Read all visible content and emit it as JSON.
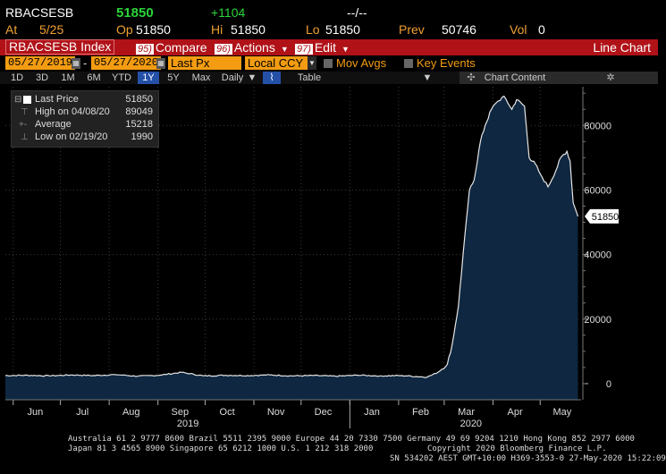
{
  "quote": {
    "ticker": "RBACSESB",
    "last": "51850",
    "change": "+1104",
    "dashes": "--/--",
    "at_label": "At",
    "at_value": "5/25",
    "op_label": "Op",
    "op_value": "51850",
    "hi_label": "Hi",
    "hi_value": "51850",
    "lo_label": "Lo",
    "lo_value": "51850",
    "prev_label": "Prev",
    "prev_value": "50746",
    "vol_label": "Vol",
    "vol_value": "0"
  },
  "toolbar": {
    "security": "RBACSESB Index",
    "compare_num": "95)",
    "compare_label": "Compare",
    "actions_num": "96)",
    "actions_label": "Actions",
    "edit_num": "97)",
    "edit_label": "Edit",
    "chart_type": "Line Chart"
  },
  "controls": {
    "start_date": "05/27/2019",
    "date_sep": "-",
    "end_date": "05/27/2020",
    "field": "Last Px",
    "currency": "Local CCY",
    "mov_avgs": "Mov Avgs",
    "key_events": "Key Events"
  },
  "periods": {
    "items": [
      "1D",
      "3D",
      "1M",
      "6M",
      "YTD",
      "1Y",
      "5Y",
      "Max"
    ],
    "selected": "1Y",
    "frequency": "Daily",
    "table_label": "Table",
    "chart_content_label": "Chart Content"
  },
  "legend": {
    "last_price_label": "Last Price",
    "last_price_value": "51850",
    "high_label": "High on 04/08/20",
    "high_value": "89049",
    "average_label": "Average",
    "average_value": "15218",
    "low_label": "Low on 02/19/20",
    "low_value": "1990"
  },
  "chart_data": {
    "type": "area",
    "x_tick_labels": [
      "Jun",
      "Jul",
      "Aug",
      "Sep",
      "Oct",
      "Nov",
      "Dec",
      "Jan",
      "Feb",
      "Mar",
      "Apr",
      "May"
    ],
    "year_labels": [
      "2019",
      "2020"
    ],
    "y_ticks": [
      0,
      20000,
      40000,
      60000,
      80000
    ],
    "y_tick_labels": [
      "0",
      "20000",
      "40000",
      "60000",
      "80000"
    ],
    "ylim": [
      -5000,
      92000
    ],
    "last_value_label": "51850",
    "last_value": 51850,
    "series": [
      {
        "values": [
          [
            "2019-05-27",
            2500
          ],
          [
            "2019-06-10",
            2600
          ],
          [
            "2019-06-24",
            2400
          ],
          [
            "2019-07-08",
            2700
          ],
          [
            "2019-07-22",
            2500
          ],
          [
            "2019-08-05",
            2800
          ],
          [
            "2019-08-19",
            2300
          ],
          [
            "2019-09-02",
            2600
          ],
          [
            "2019-09-16",
            3500
          ],
          [
            "2019-09-30",
            2400
          ],
          [
            "2019-10-14",
            2600
          ],
          [
            "2019-10-28",
            2500
          ],
          [
            "2019-11-11",
            2700
          ],
          [
            "2019-11-25",
            2400
          ],
          [
            "2019-12-09",
            2500
          ],
          [
            "2019-12-23",
            2300
          ],
          [
            "2020-01-06",
            2600
          ],
          [
            "2020-01-20",
            2400
          ],
          [
            "2020-02-03",
            2500
          ],
          [
            "2020-02-19",
            1990
          ],
          [
            "2020-02-26",
            3500
          ],
          [
            "2020-03-03",
            6000
          ],
          [
            "2020-03-06",
            12000
          ],
          [
            "2020-03-10",
            24000
          ],
          [
            "2020-03-13",
            40000
          ],
          [
            "2020-03-17",
            60000
          ],
          [
            "2020-03-20",
            63000
          ],
          [
            "2020-03-24",
            75000
          ],
          [
            "2020-03-27",
            80000
          ],
          [
            "2020-03-31",
            85000
          ],
          [
            "2020-04-03",
            87000
          ],
          [
            "2020-04-08",
            89049
          ],
          [
            "2020-04-13",
            85000
          ],
          [
            "2020-04-16",
            88000
          ],
          [
            "2020-04-21",
            86000
          ],
          [
            "2020-04-24",
            70000
          ],
          [
            "2020-04-28",
            68000
          ],
          [
            "2020-05-01",
            65000
          ],
          [
            "2020-05-06",
            61000
          ],
          [
            "2020-05-11",
            66000
          ],
          [
            "2020-05-14",
            70000
          ],
          [
            "2020-05-18",
            72000
          ],
          [
            "2020-05-20",
            69000
          ],
          [
            "2020-05-22",
            56000
          ],
          [
            "2020-05-25",
            51850
          ]
        ]
      }
    ]
  },
  "footer": {
    "line1": "Australia 61 2 9777 8600 Brazil 5511 2395 9000 Europe 44 20 7330 7500 Germany 49 69 9204 1210 Hong Kong 852 2977 6000",
    "line2a": "Japan 81 3 4565 8900       Singapore 65 6212 1000       U.S. 1 212 318 2000",
    "line2b": "Copyright 2020 Bloomberg Finance L.P.",
    "line3": "SN 534202 AEST GMT+10:00 H369-3553-0 27-May-2020 15:22:09"
  },
  "colors": {
    "accent_orange": "#f39c12",
    "toolbar_red": "#b01218",
    "positive_green": "#2ad43a",
    "area_fill": "#0f2740",
    "line": "#e6e6e6"
  }
}
